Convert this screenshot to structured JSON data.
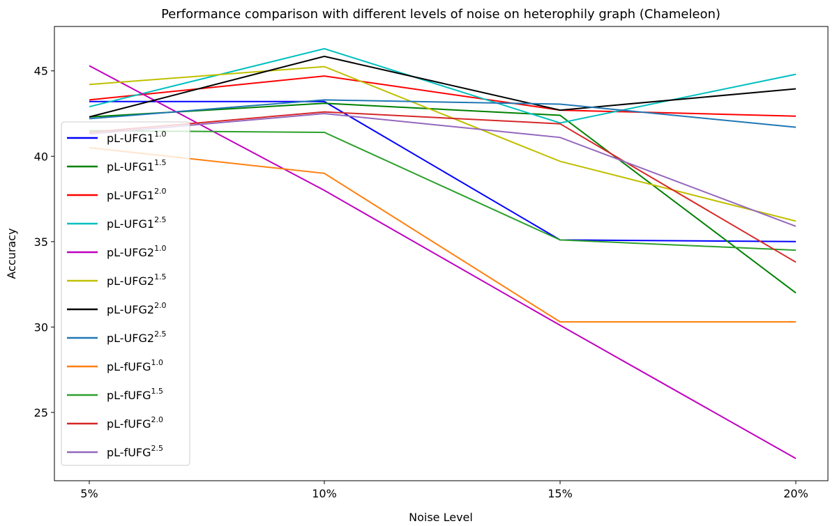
{
  "chart_data": {
    "type": "line",
    "title": "Performance comparison with different levels of noise on heterophily graph (Chameleon)",
    "xlabel": "Noise Level",
    "ylabel": "Accuracy",
    "categories": [
      "5%",
      "10%",
      "15%",
      "20%"
    ],
    "yticks": [
      25,
      30,
      35,
      40,
      45
    ],
    "ylim": [
      21.0,
      47.6
    ],
    "grid": false,
    "legend_position": "center-left",
    "series": [
      {
        "name_base": "pL-UFG1",
        "name_sup": "1.0",
        "color": "#0000ff",
        "values": [
          43.2,
          43.2,
          35.1,
          35.0
        ]
      },
      {
        "name_base": "pL-UFG1",
        "name_sup": "1.5",
        "color": "#008000",
        "values": [
          42.3,
          43.1,
          42.4,
          32.0
        ]
      },
      {
        "name_base": "pL-UFG1",
        "name_sup": "2.0",
        "color": "#ff0000",
        "values": [
          43.3,
          44.7,
          42.7,
          42.35
        ]
      },
      {
        "name_base": "pL-UFG1",
        "name_sup": "2.5",
        "color": "#00bfbf",
        "values": [
          42.9,
          46.3,
          41.95,
          44.8
        ]
      },
      {
        "name_base": "pL-UFG2",
        "name_sup": "1.0",
        "color": "#bf00bf",
        "values": [
          45.3,
          38.0,
          30.1,
          22.3
        ]
      },
      {
        "name_base": "pL-UFG2",
        "name_sup": "1.5",
        "color": "#bfbf00",
        "values": [
          44.2,
          45.25,
          39.7,
          36.2
        ]
      },
      {
        "name_base": "pL-UFG2",
        "name_sup": "2.0",
        "color": "#000000",
        "values": [
          42.3,
          45.85,
          42.7,
          43.95
        ]
      },
      {
        "name_base": "pL-UFG2",
        "name_sup": "2.5",
        "color": "#1f77b4",
        "values": [
          42.2,
          43.3,
          43.05,
          41.7
        ]
      },
      {
        "name_base": "pL-fUFG",
        "name_sup": "1.0",
        "color": "#ff7f0e",
        "values": [
          40.5,
          39.0,
          30.3,
          30.3
        ]
      },
      {
        "name_base": "pL-fUFG",
        "name_sup": "1.5",
        "color": "#2ca02c",
        "values": [
          41.5,
          41.4,
          35.1,
          34.5
        ]
      },
      {
        "name_base": "pL-fUFG",
        "name_sup": "2.0",
        "color": "#d62728",
        "values": [
          41.4,
          42.6,
          41.9,
          33.8
        ]
      },
      {
        "name_base": "pL-fUFG",
        "name_sup": "2.5",
        "color": "#9467bd",
        "values": [
          41.3,
          42.5,
          41.1,
          35.9
        ]
      }
    ]
  }
}
